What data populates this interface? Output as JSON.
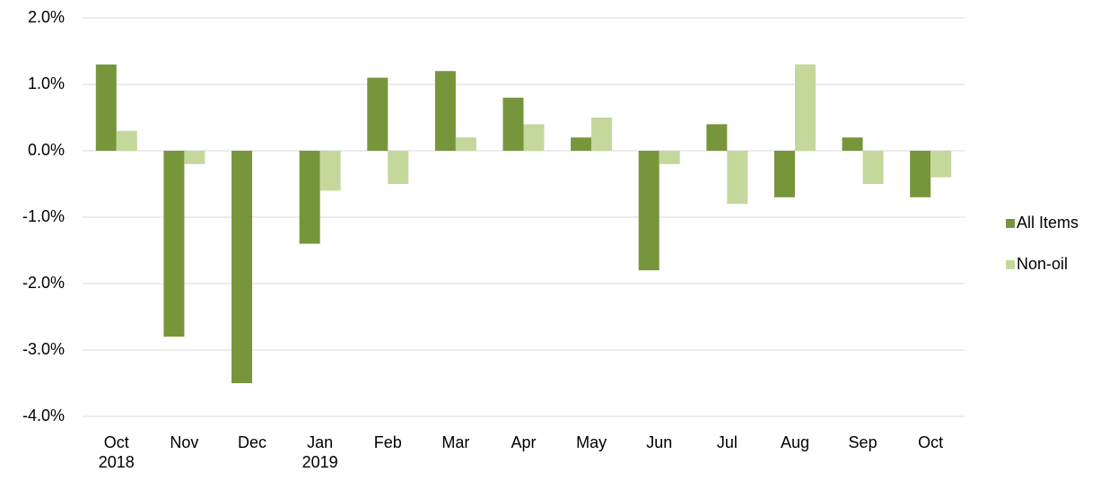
{
  "chart_data": {
    "type": "bar",
    "categories": [
      "Oct\n2018",
      "Nov",
      "Dec",
      "Jan\n2019",
      "Feb",
      "Mar",
      "Apr",
      "May",
      "Jun",
      "Jul",
      "Aug",
      "Sep",
      "Oct"
    ],
    "series": [
      {
        "name": "All Items",
        "color": "#77963c",
        "values": [
          1.3,
          -2.8,
          -3.5,
          -1.4,
          1.1,
          1.2,
          0.8,
          0.2,
          -1.8,
          0.4,
          -0.7,
          0.2,
          -0.7
        ]
      },
      {
        "name": "Non-oil",
        "color": "#c4d89b",
        "values": [
          0.3,
          -0.2,
          0,
          -0.6,
          -0.5,
          0.2,
          0.4,
          0.5,
          -0.2,
          -0.8,
          1.3,
          -0.5,
          -0.4
        ]
      }
    ],
    "ylim": [
      -4,
      2
    ],
    "yticks": [
      {
        "value": -4,
        "label": "-4.0%"
      },
      {
        "value": -3,
        "label": "-3.0%"
      },
      {
        "value": -2,
        "label": "-2.0%"
      },
      {
        "value": -1,
        "label": "-1.0%"
      },
      {
        "value": 0,
        "label": "0.0%"
      },
      {
        "value": 1,
        "label": "1.0%"
      },
      {
        "value": 2,
        "label": "2.0%"
      }
    ],
    "grid": true,
    "legend": "right"
  }
}
